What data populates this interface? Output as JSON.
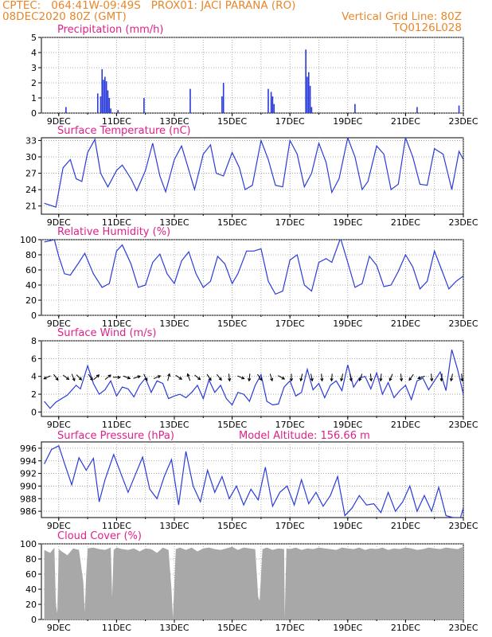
{
  "header": {
    "left_line1": "CPTEC:   064:41W-09:49S   PROX01: JACI PARANA (RO)",
    "left_line2": "08DEC2020 80Z (GMT)",
    "right_line1": "Vertical Grid Line: 80Z",
    "right_line2": "TQ0126L028"
  },
  "colors": {
    "header": "#e8872a",
    "title": "#e0208a",
    "line": "#2a3bd9",
    "cloud": "#a8a8a8",
    "grid": "#9a9a9a"
  },
  "chart_data": [
    {
      "id": "precip",
      "type": "bar",
      "title": "Precipitation  (mm/h)",
      "ylim": [
        0,
        5
      ],
      "yticks": [
        "0",
        "1",
        "2",
        "3",
        "4",
        "5"
      ],
      "xticks": [
        "9DEC",
        "11DEC",
        "13DEC",
        "15DEC",
        "17DEC",
        "19DEC",
        "21DEC",
        "23DEC"
      ],
      "x": [
        9.25,
        10.35,
        10.45,
        10.5,
        10.55,
        10.6,
        10.65,
        10.7,
        10.75,
        10.8,
        11.05,
        11.95,
        13.55,
        14.65,
        14.7,
        16.25,
        16.35,
        16.4,
        16.45,
        17.55,
        17.6,
        17.65,
        17.7,
        17.75,
        19.25,
        21.4,
        22.85
      ],
      "values": [
        0.4,
        1.3,
        1.1,
        2.9,
        2.2,
        2.4,
        2.1,
        1.5,
        1.0,
        0.3,
        0.2,
        1.0,
        1.6,
        1.1,
        2.0,
        1.6,
        1.4,
        1.1,
        0.6,
        4.2,
        2.4,
        2.7,
        1.8,
        0.4,
        0.6,
        0.4,
        0.5
      ]
    },
    {
      "id": "temp",
      "type": "line",
      "title": "Surface Temperature (nC)",
      "ylim": [
        19.5,
        33.5
      ],
      "yticks": [
        "21",
        "24",
        "27",
        "30",
        "33"
      ],
      "xticks": [
        "9DEC",
        "11DEC",
        "13DEC",
        "15DEC",
        "17DEC",
        "19DEC",
        "21DEC",
        "23DEC"
      ],
      "x": [
        8.5,
        8.9,
        9.15,
        9.4,
        9.6,
        9.8,
        10.0,
        10.25,
        10.45,
        10.7,
        11.0,
        11.2,
        11.5,
        11.7,
        12.0,
        12.25,
        12.5,
        12.7,
        13.0,
        13.25,
        13.45,
        13.7,
        14.0,
        14.25,
        14.45,
        14.7,
        15.0,
        15.25,
        15.45,
        15.7,
        16.0,
        16.25,
        16.5,
        16.75,
        17.0,
        17.25,
        17.5,
        17.75,
        18.0,
        18.25,
        18.45,
        18.7,
        19.0,
        19.25,
        19.5,
        19.7,
        20.0,
        20.25,
        20.5,
        20.75,
        21.0,
        21.25,
        21.5,
        21.75,
        22.0,
        22.3,
        22.6,
        22.85,
        23.0
      ],
      "values": [
        21.5,
        20.8,
        28.0,
        29.5,
        26.0,
        25.5,
        30.8,
        33.2,
        27.0,
        24.5,
        27.5,
        28.5,
        26.0,
        23.8,
        27.5,
        32.5,
        26.5,
        23.6,
        29.5,
        32.0,
        28.5,
        24.0,
        30.5,
        32.2,
        27.0,
        26.5,
        30.8,
        28.0,
        24.0,
        24.8,
        33.0,
        29.5,
        24.8,
        24.5,
        33.0,
        30.5,
        24.5,
        27.0,
        32.5,
        29.0,
        23.5,
        26.0,
        33.5,
        30.0,
        24.0,
        25.5,
        32.0,
        30.5,
        24.0,
        25.0,
        33.5,
        30.0,
        25.0,
        24.8,
        31.5,
        30.5,
        24.0,
        31.0,
        29.5
      ]
    },
    {
      "id": "rh",
      "type": "line",
      "title": "Relative Humidity  (%)",
      "ylim": [
        0,
        100
      ],
      "yticks": [
        "0",
        "20",
        "40",
        "60",
        "80",
        "100"
      ],
      "xticks": [
        "9DEC",
        "11DEC",
        "13DEC",
        "15DEC",
        "17DEC",
        "19DEC",
        "21DEC",
        "23DEC"
      ],
      "x": [
        8.5,
        8.85,
        9.0,
        9.2,
        9.4,
        9.7,
        9.9,
        10.2,
        10.5,
        10.75,
        11.0,
        11.2,
        11.5,
        11.75,
        12.0,
        12.25,
        12.5,
        12.75,
        13.0,
        13.25,
        13.5,
        13.75,
        14.0,
        14.25,
        14.5,
        14.75,
        15.0,
        15.2,
        15.5,
        15.75,
        16.0,
        16.25,
        16.5,
        16.75,
        17.0,
        17.25,
        17.5,
        17.75,
        18.0,
        18.25,
        18.45,
        18.75,
        19.0,
        19.25,
        19.5,
        19.75,
        20.0,
        20.25,
        20.5,
        20.75,
        21.0,
        21.25,
        21.5,
        21.75,
        22.0,
        22.25,
        22.5,
        22.75,
        23.0
      ],
      "values": [
        97,
        100,
        78,
        55,
        53,
        70,
        82,
        55,
        37,
        42,
        85,
        93,
        68,
        37,
        40,
        70,
        81,
        55,
        42,
        72,
        84,
        55,
        37,
        45,
        78,
        68,
        42,
        55,
        85,
        85,
        88,
        45,
        28,
        32,
        73,
        80,
        40,
        32,
        70,
        75,
        70,
        102,
        70,
        37,
        42,
        78,
        66,
        38,
        40,
        58,
        80,
        64,
        35,
        45,
        85,
        60,
        35,
        45,
        52
      ]
    },
    {
      "id": "wind",
      "type": "line",
      "title": "Surface Wind  (m/s)",
      "ylim": [
        -0.5,
        8
      ],
      "yticks": [
        "0",
        "2",
        "4",
        "6",
        "8"
      ],
      "xticks": [
        "9DEC",
        "11DEC",
        "13DEC",
        "15DEC",
        "17DEC",
        "19DEC",
        "21DEC",
        "23DEC"
      ],
      "x": [
        8.5,
        8.7,
        8.9,
        9.1,
        9.3,
        9.6,
        9.75,
        10.0,
        10.2,
        10.4,
        10.6,
        10.8,
        11.0,
        11.2,
        11.4,
        11.6,
        11.8,
        12.0,
        12.2,
        12.4,
        12.6,
        12.8,
        13.0,
        13.2,
        13.4,
        13.6,
        13.8,
        14.0,
        14.2,
        14.4,
        14.6,
        14.8,
        15.0,
        15.2,
        15.4,
        15.6,
        15.8,
        16.0,
        16.2,
        16.4,
        16.6,
        16.8,
        17.0,
        17.2,
        17.4,
        17.6,
        17.8,
        18.0,
        18.2,
        18.4,
        18.6,
        18.8,
        19.0,
        19.2,
        19.4,
        19.6,
        19.8,
        20.0,
        20.2,
        20.4,
        20.6,
        20.8,
        21.0,
        21.2,
        21.4,
        21.6,
        21.8,
        22.0,
        22.2,
        22.4,
        22.6,
        22.8,
        23.0
      ],
      "values": [
        1.2,
        0.4,
        1.1,
        1.5,
        1.9,
        3.0,
        2.6,
        5.2,
        3.2,
        2.0,
        2.5,
        3.5,
        1.8,
        2.8,
        2.6,
        1.7,
        3.0,
        3.8,
        2.2,
        3.5,
        3.2,
        1.5,
        1.8,
        2.0,
        1.6,
        2.2,
        3.0,
        1.5,
        3.6,
        2.2,
        3.0,
        1.5,
        0.8,
        2.2,
        2.0,
        1.2,
        3.0,
        4.2,
        1.2,
        0.8,
        0.9,
        2.8,
        3.5,
        1.8,
        2.2,
        4.8,
        2.5,
        3.2,
        1.6,
        3.0,
        3.5,
        2.4,
        5.3,
        2.8,
        3.8,
        4.0,
        2.6,
        4.4,
        2.0,
        3.3,
        1.6,
        2.4,
        3.0,
        1.4,
        3.5,
        3.8,
        2.5,
        3.5,
        4.5,
        2.4,
        7.0,
        4.8,
        2.0
      ],
      "arrows": {
        "x": [
          8.6,
          8.9,
          9.25,
          9.5,
          9.7,
          10.1,
          10.3,
          10.7,
          11.0,
          11.35,
          11.7,
          12.0,
          12.4,
          12.8,
          13.15,
          13.5,
          13.8,
          14.2,
          14.55,
          14.9,
          15.3,
          15.6,
          15.95,
          16.35,
          16.7,
          17.05,
          17.4,
          17.75,
          18.1,
          18.45,
          18.8,
          19.1,
          19.45,
          19.8,
          20.15,
          20.5,
          20.85,
          21.2,
          21.55,
          21.9,
          22.25,
          22.6,
          22.95
        ],
        "dx": [
          -0.9,
          0.6,
          0.8,
          0.4,
          0.5,
          0.6,
          0.8,
          0.5,
          1.0,
          0.8,
          0.6,
          0.3,
          0.7,
          0.2,
          0.6,
          -0.3,
          0.5,
          0.4,
          0.5,
          0.1,
          0.7,
          -0.1,
          0.5,
          0.3,
          0.9,
          0.0,
          -0.2,
          0.2,
          0.1,
          -0.1,
          -0.2,
          0.2,
          -0.3,
          0.1,
          -0.1,
          -0.3,
          0.1,
          -0.5,
          -0.9,
          0.1,
          -0.1,
          -0.2,
          0.1
        ],
        "dy": [
          -0.4,
          -0.8,
          -0.6,
          -1.0,
          -0.5,
          -0.9,
          0.7,
          0.4,
          0.0,
          -0.3,
          0.2,
          -0.6,
          0.3,
          0.8,
          -0.4,
          0.8,
          -0.4,
          -0.6,
          -0.6,
          -0.9,
          -0.3,
          -0.9,
          -0.7,
          -1.0,
          -0.5,
          -0.9,
          -0.9,
          -1.0,
          -1.0,
          -1.0,
          -0.9,
          -1.0,
          -0.8,
          -0.9,
          -1.0,
          -0.7,
          -1.0,
          -0.7,
          -0.3,
          -1.0,
          -1.0,
          -0.9,
          -1.0
        ]
      }
    },
    {
      "id": "pres",
      "type": "line",
      "title": "Surface Pressure  (hPa)",
      "annotation": "Model Altitude: 156.66  m",
      "ylim": [
        985,
        997
      ],
      "yticks": [
        "986",
        "988",
        "990",
        "992",
        "994",
        "996"
      ],
      "xticks": [
        "9DEC",
        "11DEC",
        "13DEC",
        "15DEC",
        "17DEC",
        "19DEC",
        "21DEC",
        "23DEC"
      ],
      "x": [
        8.5,
        8.75,
        9.0,
        9.2,
        9.45,
        9.7,
        9.95,
        10.2,
        10.4,
        10.6,
        10.9,
        11.15,
        11.4,
        11.65,
        11.9,
        12.15,
        12.4,
        12.65,
        12.9,
        13.15,
        13.4,
        13.65,
        13.9,
        14.15,
        14.4,
        14.65,
        14.9,
        15.15,
        15.4,
        15.65,
        15.9,
        16.15,
        16.4,
        16.65,
        16.9,
        17.15,
        17.4,
        17.65,
        17.9,
        18.15,
        18.4,
        18.65,
        18.9,
        19.15,
        19.4,
        19.65,
        19.9,
        20.15,
        20.4,
        20.65,
        20.9,
        21.15,
        21.4,
        21.65,
        21.9,
        22.15,
        22.4,
        22.65,
        22.9,
        23.0
      ],
      "values": [
        993.5,
        995.8,
        996.4,
        993.6,
        990.2,
        994.5,
        992.5,
        994.4,
        987.5,
        991.0,
        995.0,
        992.0,
        989.0,
        991.8,
        994.6,
        989.5,
        988.0,
        991.5,
        994.2,
        987.0,
        995.5,
        990.0,
        987.5,
        992.5,
        989.0,
        991.5,
        988.0,
        990.0,
        987.0,
        989.5,
        987.8,
        993.0,
        986.8,
        989.0,
        990.0,
        987.0,
        991.0,
        987.2,
        989.0,
        986.8,
        988.5,
        991.5,
        985.3,
        986.5,
        988.5,
        987.0,
        987.2,
        985.8,
        989.0,
        986.0,
        987.5,
        990.0,
        986.0,
        988.5,
        986.0,
        989.8,
        985.3,
        985.0,
        985.0,
        986.5
      ]
    },
    {
      "id": "cloud",
      "type": "area",
      "title": "Cloud Cover  (%)",
      "ylim": [
        0,
        100
      ],
      "yticks": [
        "0",
        "20",
        "40",
        "60",
        "80",
        "100"
      ],
      "xticks": [
        "9DEC",
        "11DEC",
        "13DEC",
        "15DEC",
        "17DEC",
        "19DEC",
        "21DEC",
        "23DEC"
      ],
      "x": [
        8.5,
        8.7,
        8.85,
        8.9,
        8.95,
        9.0,
        9.1,
        9.3,
        9.5,
        9.7,
        9.85,
        9.9,
        9.95,
        10.0,
        10.2,
        10.4,
        10.6,
        10.8,
        10.85,
        10.9,
        11.0,
        11.2,
        11.4,
        11.6,
        11.8,
        12.0,
        12.2,
        12.4,
        12.6,
        12.8,
        12.9,
        12.95,
        13.05,
        13.2,
        13.4,
        13.6,
        13.8,
        14.0,
        14.2,
        14.4,
        14.6,
        14.8,
        15.0,
        15.2,
        15.4,
        15.6,
        15.8,
        15.9,
        15.95,
        16.05,
        16.2,
        16.4,
        16.6,
        16.8,
        16.82,
        16.85,
        16.88,
        17.0,
        17.2,
        17.4,
        17.6,
        17.8,
        18.0,
        18.2,
        18.4,
        18.6,
        18.8,
        19.0,
        19.2,
        19.4,
        19.6,
        19.8,
        20.0,
        20.2,
        20.4,
        20.6,
        20.8,
        21.0,
        21.2,
        21.4,
        21.6,
        21.8,
        22.0,
        22.2,
        22.4,
        22.6,
        22.8,
        23.0
      ],
      "values": [
        92,
        88,
        95,
        20,
        8,
        93,
        90,
        85,
        94,
        92,
        50,
        10,
        60,
        94,
        95,
        93,
        92,
        95,
        30,
        92,
        95,
        93,
        92,
        94,
        90,
        94,
        93,
        88,
        95,
        92,
        40,
        2,
        93,
        95,
        92,
        95,
        90,
        94,
        95,
        93,
        92,
        94,
        96,
        92,
        95,
        94,
        93,
        30,
        25,
        93,
        95,
        92,
        94,
        93,
        2,
        50,
        94,
        93,
        95,
        92,
        94,
        93,
        95,
        94,
        93,
        92,
        95,
        94,
        93,
        95,
        92,
        94,
        93,
        95,
        92,
        94,
        93,
        95,
        94,
        92,
        93,
        95,
        94,
        93,
        95,
        94,
        93,
        96
      ]
    }
  ]
}
